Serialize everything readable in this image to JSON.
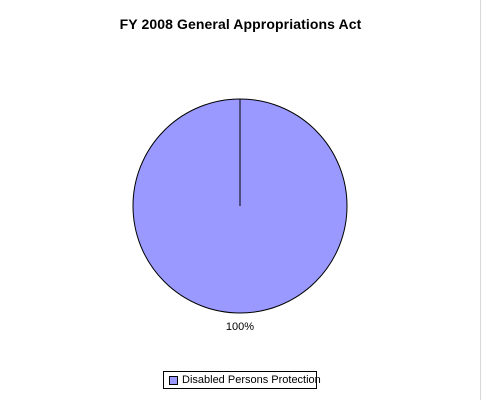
{
  "chart_data": {
    "type": "pie",
    "title": "FY 2008 General Appropriations Act",
    "slices": [
      {
        "name": "Disabled Persons Protection",
        "value": 100,
        "label": "100%",
        "color": "#9999ff"
      }
    ],
    "legend_position": "bottom"
  },
  "colors": {
    "slice_border": "#000000",
    "background": "#ffffff"
  }
}
